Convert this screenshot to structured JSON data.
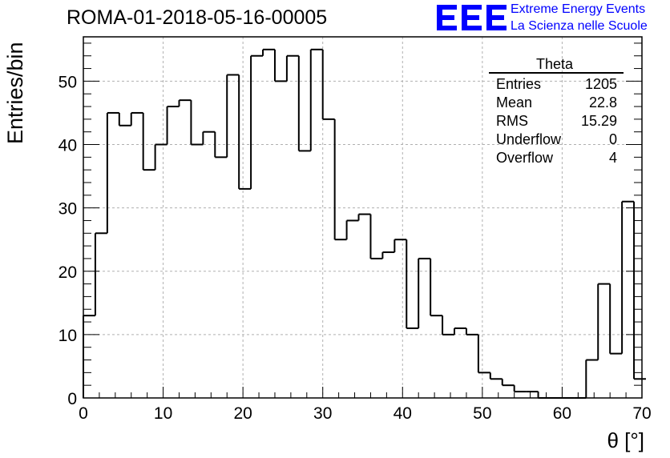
{
  "header": {
    "title": "ROMA-01-2018-05-16-00005",
    "logo_text": "EEE",
    "org_line1": "Extreme Energy Events",
    "org_line2": "La Scienza nelle Scuole"
  },
  "colors": {
    "brand": "#0000ff",
    "line": "#000000",
    "grid": "#b0b0b0"
  },
  "stats": {
    "title": "Theta",
    "rows": [
      {
        "label": "Entries",
        "value": "1205"
      },
      {
        "label": "Mean",
        "value": "22.8"
      },
      {
        "label": "RMS",
        "value": "15.29"
      },
      {
        "label": "Underflow",
        "value": "0"
      },
      {
        "label": "Overflow",
        "value": "4"
      }
    ]
  },
  "chart_data": {
    "type": "bar",
    "style": "step-histogram",
    "title": "ROMA-01-2018-05-16-00005",
    "xlabel": "θ [°]",
    "ylabel": "Entries/bin",
    "xlim": [
      0,
      70
    ],
    "ylim": [
      0,
      57
    ],
    "grid": true,
    "bin_width": 1.5,
    "bin_edges_start": 0,
    "xticks": [
      0,
      10,
      20,
      30,
      40,
      50,
      60,
      70
    ],
    "yticks": [
      0,
      10,
      20,
      30,
      40,
      50
    ],
    "values": [
      13,
      26,
      45,
      43,
      45,
      36,
      40,
      46,
      47,
      40,
      42,
      38,
      51,
      33,
      54,
      55,
      50,
      54,
      39,
      55,
      44,
      25,
      28,
      29,
      22,
      23,
      25,
      11,
      22,
      13,
      10,
      11,
      10,
      4,
      3,
      2,
      1,
      1,
      0,
      0,
      0,
      0,
      6,
      18,
      7,
      31,
      3
    ]
  }
}
